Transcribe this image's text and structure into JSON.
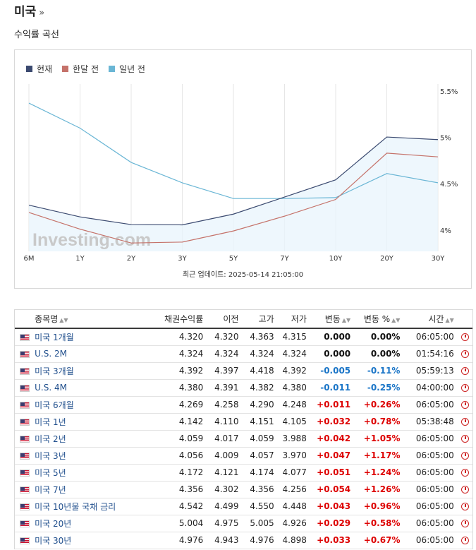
{
  "header": {
    "title": "미국",
    "title_suffix": "»",
    "subtitle": "수익률 곡선"
  },
  "chart_data": {
    "type": "line",
    "categories": [
      "6M",
      "1Y",
      "2Y",
      "3Y",
      "5Y",
      "7Y",
      "10Y",
      "20Y",
      "30Y"
    ],
    "series": [
      {
        "name": "현재",
        "color": "#3b4a70",
        "values": [
          4.269,
          4.142,
          4.059,
          4.056,
          4.172,
          4.356,
          4.542,
          5.004,
          4.976
        ]
      },
      {
        "name": "한달 전",
        "color": "#c5726a",
        "values": [
          4.19,
          4.01,
          3.86,
          3.87,
          3.99,
          4.15,
          4.33,
          4.83,
          4.79
        ]
      },
      {
        "name": "일년 전",
        "color": "#6ab6d5",
        "values": [
          5.37,
          5.1,
          4.73,
          4.51,
          4.34,
          4.34,
          4.35,
          4.61,
          4.51
        ]
      }
    ],
    "y_ticks": [
      "5.5%",
      "5%",
      "4.5%",
      "4%"
    ],
    "y_tick_values": [
      5.5,
      5.0,
      4.5,
      4.0
    ],
    "ylim": [
      3.77,
      5.5
    ],
    "grid": "vertical",
    "legend": "top-left",
    "watermark": "Investing.com",
    "update_note": "최근 업데이트: 2025-05-14 21:05:00"
  },
  "table": {
    "headers": [
      "종목명",
      "채권수익률",
      "이전",
      "고가",
      "저가",
      "변동",
      "변동 %",
      "시간"
    ],
    "rows": [
      {
        "name": "미국 1개월",
        "yield": "4.320",
        "prev": "4.320",
        "high": "4.363",
        "low": "4.315",
        "chg": "0.000",
        "pct": "0.00%",
        "time": "06:05:00",
        "dir": "zero"
      },
      {
        "name": "U.S. 2M",
        "yield": "4.324",
        "prev": "4.324",
        "high": "4.324",
        "low": "4.324",
        "chg": "0.000",
        "pct": "0.00%",
        "time": "01:54:16",
        "dir": "zero"
      },
      {
        "name": "미국 3개월",
        "yield": "4.392",
        "prev": "4.397",
        "high": "4.418",
        "low": "4.392",
        "chg": "-0.005",
        "pct": "-0.11%",
        "time": "05:59:13",
        "dir": "neg"
      },
      {
        "name": "U.S. 4M",
        "yield": "4.380",
        "prev": "4.391",
        "high": "4.382",
        "low": "4.380",
        "chg": "-0.011",
        "pct": "-0.25%",
        "time": "04:00:00",
        "dir": "neg"
      },
      {
        "name": "미국 6개월",
        "yield": "4.269",
        "prev": "4.258",
        "high": "4.290",
        "low": "4.248",
        "chg": "+0.011",
        "pct": "+0.26%",
        "time": "06:05:00",
        "dir": "pos"
      },
      {
        "name": "미국 1년",
        "yield": "4.142",
        "prev": "4.110",
        "high": "4.151",
        "low": "4.105",
        "chg": "+0.032",
        "pct": "+0.78%",
        "time": "05:38:48",
        "dir": "pos"
      },
      {
        "name": "미국 2년",
        "yield": "4.059",
        "prev": "4.017",
        "high": "4.059",
        "low": "3.988",
        "chg": "+0.042",
        "pct": "+1.05%",
        "time": "06:05:00",
        "dir": "pos"
      },
      {
        "name": "미국 3년",
        "yield": "4.056",
        "prev": "4.009",
        "high": "4.057",
        "low": "3.970",
        "chg": "+0.047",
        "pct": "+1.17%",
        "time": "06:05:00",
        "dir": "pos"
      },
      {
        "name": "미국 5년",
        "yield": "4.172",
        "prev": "4.121",
        "high": "4.174",
        "low": "4.077",
        "chg": "+0.051",
        "pct": "+1.24%",
        "time": "06:05:00",
        "dir": "pos"
      },
      {
        "name": "미국 7년",
        "yield": "4.356",
        "prev": "4.302",
        "high": "4.356",
        "low": "4.256",
        "chg": "+0.054",
        "pct": "+1.26%",
        "time": "06:05:00",
        "dir": "pos"
      },
      {
        "name": "미국 10년물 국채 금리",
        "yield": "4.542",
        "prev": "4.499",
        "high": "4.550",
        "low": "4.448",
        "chg": "+0.043",
        "pct": "+0.96%",
        "time": "06:05:00",
        "dir": "pos"
      },
      {
        "name": "미국 20년",
        "yield": "5.004",
        "prev": "4.975",
        "high": "5.005",
        "low": "4.926",
        "chg": "+0.029",
        "pct": "+0.58%",
        "time": "06:05:00",
        "dir": "pos"
      },
      {
        "name": "미국 30년",
        "yield": "4.976",
        "prev": "4.943",
        "high": "4.976",
        "low": "4.898",
        "chg": "+0.033",
        "pct": "+0.67%",
        "time": "06:05:00",
        "dir": "pos"
      }
    ]
  }
}
